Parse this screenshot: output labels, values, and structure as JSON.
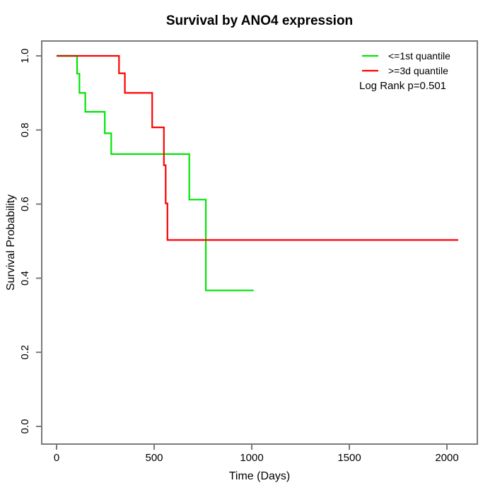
{
  "title": "Survival by ANO4 expression",
  "annotation": "Log Rank p=0.501",
  "axes": {
    "xlabel": "Time (Days)",
    "ylabel": "Survival Probability",
    "xticks": [
      0,
      500,
      1000,
      1500,
      2000
    ],
    "ytick_values": [
      0,
      0.2,
      0.4,
      0.6,
      0.8,
      1.0
    ],
    "ytick_labels": [
      "0.0",
      "0.2",
      "0.4",
      "0.6",
      "0.8",
      "1.0"
    ]
  },
  "legend": {
    "items": [
      {
        "label": "<=1st quantile",
        "color": "#00e606"
      },
      {
        "label": ">=3d quantile",
        "color": "#ff0000"
      }
    ]
  },
  "colors": {
    "frame": "#7a7a7a",
    "tick": "#7a7a7a",
    "text": "#000000",
    "overlap": "#a63200"
  },
  "chart_data": {
    "type": "line",
    "subtype": "kaplan-meier-step",
    "title": "Survival by ANO4 expression",
    "xlabel": "Time (Days)",
    "ylabel": "Survival Probability",
    "xlim": [
      0,
      2070
    ],
    "ylim": [
      0,
      1
    ],
    "grid": false,
    "legend_position": "top-right",
    "log_rank_p": 0.501,
    "series": [
      {
        "name": "<=1st quantile",
        "color": "#00e606",
        "start": [
          0,
          1.0
        ],
        "events": [
          [
            105,
            0.952
          ],
          [
            117,
            0.9
          ],
          [
            147,
            0.849
          ],
          [
            247,
            0.791
          ],
          [
            280,
            0.735
          ],
          [
            680,
            0.612
          ],
          [
            765,
            0.367
          ]
        ],
        "end_time": 1010
      },
      {
        "name": ">=3d quantile",
        "color": "#ff0000",
        "start": [
          0,
          1.0
        ],
        "events": [
          [
            320,
            0.953
          ],
          [
            350,
            0.9
          ],
          [
            490,
            0.807
          ],
          [
            550,
            0.705
          ],
          [
            559,
            0.602
          ],
          [
            568,
            0.503
          ]
        ],
        "end_time": 2058
      }
    ]
  }
}
